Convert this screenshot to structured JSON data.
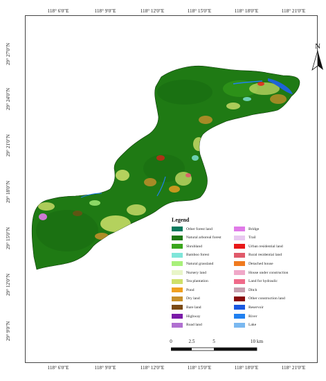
{
  "map": {
    "north_label": "N",
    "top_ticks": [
      "118° 6'0\"E",
      "118° 9'0\"E",
      "118° 12'0\"E",
      "118° 15'0\"E",
      "118° 18'0\"E",
      "118° 21'0\"E"
    ],
    "bottom_ticks": [
      "118° 6'0\"E",
      "118° 9'0\"E",
      "118° 12'0\"E",
      "118° 15'0\"E",
      "118° 18'0\"E",
      "118° 21'0\"E"
    ],
    "left_ticks": [
      "29° 27'0\"N",
      "29° 24'0\"N",
      "29° 21'0\"N",
      "29° 18'0\"N",
      "29° 15'0\"N",
      "29° 12'0\"N",
      "29° 9'0\"N"
    ],
    "scale": {
      "labels": [
        "0",
        "2.5",
        "5",
        "10 km"
      ]
    },
    "colors": {
      "forest_main": "#1f7a14",
      "forest_dark": "#155c0d",
      "tea": "#cfe06a",
      "dry": "#c8a02a",
      "water": "#1e63d8"
    }
  },
  "legend": {
    "title": "Legend",
    "left_items": [
      {
        "label": "Other forest land",
        "color": "#0a7a5e"
      },
      {
        "label": "Natural arboreal forest",
        "color": "#1f7a14"
      },
      {
        "label": "Shrubland",
        "color": "#3aa61c"
      },
      {
        "label": "Bamboo forest",
        "color": "#7fe6d9"
      },
      {
        "label": "Natural grassland",
        "color": "#a8f07a"
      },
      {
        "label": "Nursery land",
        "color": "#e8f5c8"
      },
      {
        "label": "Tea plantation",
        "color": "#cfe06a"
      },
      {
        "label": "Pond",
        "color": "#f0a020"
      },
      {
        "label": "Dry land",
        "color": "#c8902a"
      },
      {
        "label": "Bare land",
        "color": "#7a4a14"
      },
      {
        "label": "Highway",
        "color": "#7a1aa8"
      },
      {
        "label": "Road land",
        "color": "#b070d0"
      }
    ],
    "right_items": [
      {
        "label": "Bridge",
        "color": "#e07ae8"
      },
      {
        "label": "Trail",
        "color": "#e8c8f0"
      },
      {
        "label": "Urban residential land",
        "color": "#e81818"
      },
      {
        "label": "Rural residential land",
        "color": "#e05a6a"
      },
      {
        "label": "Detached house",
        "color": "#f07a1e"
      },
      {
        "label": "House under construction",
        "color": "#f0a8c8"
      },
      {
        "label": "Land for hydraulic",
        "color": "#f06a8a"
      },
      {
        "label": "Ditch",
        "color": "#c8a0b0"
      },
      {
        "label": "Other construction land",
        "color": "#8a0a0a"
      },
      {
        "label": "Reservoir",
        "color": "#1a58e0"
      },
      {
        "label": "River",
        "color": "#2080f0"
      },
      {
        "label": "Lake",
        "color": "#7ab8f0"
      }
    ]
  }
}
